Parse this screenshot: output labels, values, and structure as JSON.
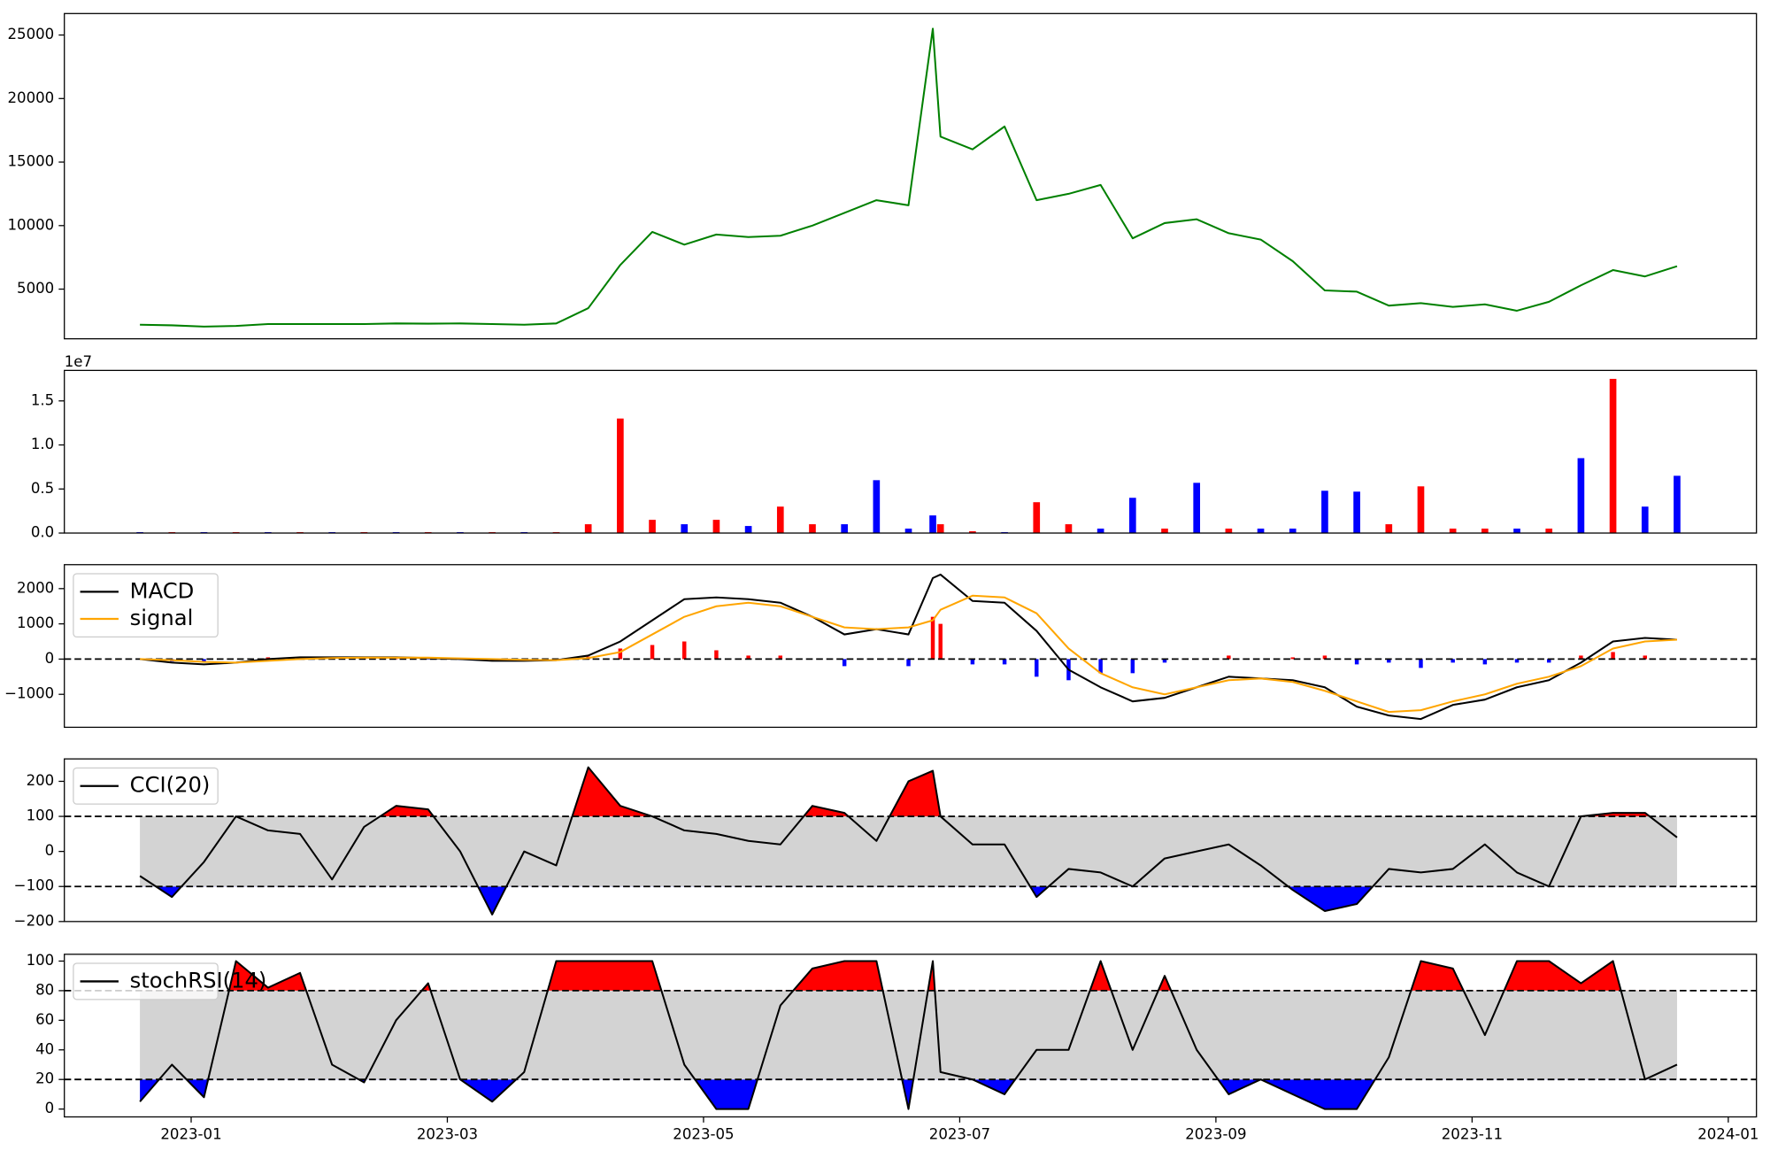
{
  "chart_data": [
    {
      "type": "line",
      "color": "#008000",
      "x": [
        -0.4,
        -0.15,
        0.1,
        0.35,
        0.6,
        0.85,
        1.1,
        1.35,
        1.6,
        1.85,
        2.1,
        2.35,
        2.6,
        2.85,
        3.1,
        3.35,
        3.6,
        3.85,
        4.1,
        4.35,
        4.6,
        4.85,
        5.1,
        5.35,
        5.6,
        5.79,
        5.85,
        6.1,
        6.35,
        6.6,
        6.85,
        7.1,
        7.35,
        7.6,
        7.85,
        8.1,
        8.35,
        8.6,
        8.85,
        9.1,
        9.35,
        9.6,
        9.85,
        10.1,
        10.35,
        10.6,
        10.85,
        11.1,
        11.35,
        11.6
      ],
      "values": [
        2200,
        2150,
        2050,
        2100,
        2250,
        2250,
        2250,
        2250,
        2300,
        2280,
        2300,
        2250,
        2200,
        2300,
        3500,
        6900,
        9500,
        8500,
        9300,
        9100,
        9200,
        10000,
        11000,
        12000,
        11600,
        25500,
        17000,
        16000,
        17800,
        12000,
        12500,
        13200,
        9000,
        10200,
        10500,
        9400,
        8900,
        7200,
        4900,
        4800,
        3700,
        3900,
        3600,
        3800,
        3300,
        4000,
        5300,
        6500,
        6000,
        6800
      ],
      "xlim": [
        -0.99,
        12.22
      ],
      "ylim": [
        1090,
        26690
      ],
      "yticks": [
        5000,
        10000,
        15000,
        20000,
        25000
      ]
    },
    {
      "type": "bar",
      "offset_label": "1e7",
      "x": [
        -0.4,
        -0.15,
        0.1,
        0.35,
        0.6,
        0.85,
        1.1,
        1.35,
        1.6,
        1.85,
        2.1,
        2.35,
        2.6,
        2.85,
        3.1,
        3.35,
        3.6,
        3.85,
        4.1,
        4.35,
        4.6,
        4.85,
        5.1,
        5.35,
        5.6,
        5.79,
        5.85,
        6.1,
        6.35,
        6.6,
        6.85,
        7.1,
        7.35,
        7.6,
        7.85,
        8.1,
        8.35,
        8.6,
        8.85,
        9.1,
        9.35,
        9.6,
        9.85,
        10.1,
        10.35,
        10.6,
        10.85,
        11.1,
        11.35,
        11.6
      ],
      "values": [
        0.01,
        0.01,
        0.01,
        0.01,
        0.01,
        0.01,
        0.01,
        0.01,
        0.01,
        0.01,
        0.01,
        0.01,
        0.01,
        0.01,
        0.1,
        1.3,
        0.15,
        0.1,
        0.15,
        0.08,
        0.3,
        0.1,
        0.1,
        0.6,
        0.05,
        0.2,
        0.1,
        0.02,
        0.01,
        0.35,
        0.1,
        0.05,
        0.4,
        0.05,
        0.57,
        0.05,
        0.05,
        0.05,
        0.48,
        0.47,
        0.1,
        0.53,
        0.05,
        0.05,
        0.05,
        0.05,
        0.85,
        1.75,
        0.3,
        0.65
      ],
      "bar_colors": [
        "#0000ff",
        "#ff0000",
        "#0000ff",
        "#ff0000",
        "#0000ff",
        "#ff0000",
        "#0000ff",
        "#ff0000",
        "#0000ff",
        "#ff0000",
        "#0000ff",
        "#ff0000",
        "#0000ff",
        "#ff0000",
        "#ff0000",
        "#ff0000",
        "#ff0000",
        "#0000ff",
        "#ff0000",
        "#0000ff",
        "#ff0000",
        "#ff0000",
        "#0000ff",
        "#0000ff",
        "#0000ff",
        "#0000ff",
        "#ff0000",
        "#ff0000",
        "#0000ff",
        "#ff0000",
        "#ff0000",
        "#0000ff",
        "#0000ff",
        "#ff0000",
        "#0000ff",
        "#ff0000",
        "#0000ff",
        "#0000ff",
        "#0000ff",
        "#0000ff",
        "#ff0000",
        "#ff0000",
        "#ff0000",
        "#ff0000",
        "#0000ff",
        "#ff0000",
        "#0000ff",
        "#ff0000",
        "#0000ff",
        "#0000ff"
      ],
      "xlim": [
        -0.99,
        12.22
      ],
      "ylim": [
        0,
        1.846
      ],
      "yticks": [
        {
          "value": 0,
          "label": "0.0"
        },
        {
          "value": 0.5,
          "label": "0.5"
        },
        {
          "value": 1,
          "label": "1.0"
        },
        {
          "value": 1.5,
          "label": "1.5"
        }
      ]
    },
    {
      "type": "macd",
      "legend": "upper left",
      "zero_line": true,
      "x": [
        -0.4,
        -0.15,
        0.1,
        0.35,
        0.6,
        0.85,
        1.1,
        1.35,
        1.6,
        1.85,
        2.1,
        2.35,
        2.6,
        2.85,
        3.1,
        3.35,
        3.6,
        3.85,
        4.1,
        4.35,
        4.6,
        4.85,
        5.1,
        5.35,
        5.6,
        5.79,
        5.85,
        6.1,
        6.35,
        6.6,
        6.85,
        7.1,
        7.35,
        7.6,
        7.85,
        8.1,
        8.35,
        8.6,
        8.85,
        9.1,
        9.35,
        9.6,
        9.85,
        10.1,
        10.35,
        10.6,
        10.85,
        11.1,
        11.35,
        11.6
      ],
      "series": [
        {
          "name": "MACD",
          "color": "#000000",
          "values": [
            0,
            -100,
            -150,
            -100,
            0,
            50,
            50,
            50,
            50,
            30,
            0,
            -50,
            -50,
            -30,
            100,
            500,
            1100,
            1700,
            1750,
            1700,
            1600,
            1200,
            700,
            850,
            700,
            2300,
            2400,
            1650,
            1600,
            800,
            -300,
            -800,
            -1200,
            -1100,
            -800,
            -500,
            -550,
            -600,
            -800,
            -1350,
            -1600,
            -1700,
            -1300,
            -1150,
            -800,
            -600,
            -100,
            500,
            600,
            550
          ]
        },
        {
          "name": "signal",
          "color": "#ffa500",
          "values": [
            0,
            -30,
            -80,
            -100,
            -50,
            0,
            30,
            40,
            40,
            40,
            20,
            0,
            -20,
            -30,
            30,
            200,
            700,
            1200,
            1500,
            1600,
            1500,
            1200,
            900,
            850,
            900,
            1100,
            1400,
            1800,
            1750,
            1300,
            300,
            -400,
            -800,
            -1000,
            -800,
            -600,
            -550,
            -650,
            -900,
            -1200,
            -1500,
            -1450,
            -1200,
            -1000,
            -700,
            -500,
            -200,
            300,
            500,
            550
          ]
        }
      ],
      "hist": [
        0,
        -70,
        -70,
        0,
        50,
        50,
        20,
        10,
        10,
        -10,
        -20,
        -50,
        -30,
        0,
        70,
        300,
        400,
        500,
        250,
        100,
        100,
        0,
        -200,
        0,
        -200,
        1200,
        1000,
        -150,
        -150,
        -500,
        -600,
        -400,
        -400,
        -100,
        0,
        100,
        0,
        50,
        100,
        -150,
        -100,
        -250,
        -100,
        -150,
        -100,
        -100,
        100,
        200,
        100,
        0
      ],
      "hist_colors": [
        "#ff0000",
        "#0000ff"
      ],
      "xlim": [
        -0.99,
        12.22
      ],
      "ylim": [
        -1935,
        2680
      ],
      "yticks": [
        {
          "value": -1000,
          "label": "−1000"
        },
        0,
        1000,
        2000
      ]
    },
    {
      "type": "oscillator",
      "legend": "upper left",
      "x": [
        -0.4,
        -0.15,
        0.1,
        0.35,
        0.6,
        0.85,
        1.1,
        1.35,
        1.6,
        1.85,
        2.1,
        2.35,
        2.6,
        2.85,
        3.1,
        3.35,
        3.6,
        3.85,
        4.1,
        4.35,
        4.6,
        4.85,
        5.1,
        5.35,
        5.6,
        5.79,
        5.85,
        6.1,
        6.35,
        6.6,
        6.85,
        7.1,
        7.35,
        7.6,
        7.85,
        8.1,
        8.35,
        8.6,
        8.85,
        9.1,
        9.35,
        9.6,
        9.85,
        10.1,
        10.35,
        10.6,
        10.85,
        11.1,
        11.35,
        11.6
      ],
      "series": [
        {
          "name": "CCI(20)",
          "color": "#000000",
          "values": [
            -70,
            -130,
            -30,
            100,
            60,
            50,
            -80,
            70,
            130,
            120,
            0,
            -180,
            0,
            -40,
            240,
            130,
            100,
            60,
            50,
            30,
            20,
            130,
            110,
            30,
            200,
            230,
            100,
            20,
            20,
            -130,
            -50,
            -60,
            -100,
            -20,
            0,
            20,
            -40,
            -110,
            -170,
            -150,
            -50,
            -60,
            -50,
            20,
            -60,
            -100,
            100,
            110,
            110,
            40
          ]
        }
      ],
      "levels": [
        -100,
        100
      ],
      "fill_colors": [
        "#ff0000",
        "#0000ff",
        "#d3d3d3"
      ],
      "xlim": [
        -0.99,
        12.22
      ],
      "ylim": [
        -200,
        264
      ],
      "yticks": [
        {
          "value": -200,
          "label": "−200"
        },
        {
          "value": -100,
          "label": "−100"
        },
        0,
        100,
        200
      ]
    },
    {
      "type": "oscillator",
      "legend": "upper left",
      "x": [
        -0.4,
        -0.15,
        0.1,
        0.35,
        0.6,
        0.85,
        1.1,
        1.35,
        1.6,
        1.85,
        2.1,
        2.35,
        2.6,
        2.85,
        3.1,
        3.35,
        3.6,
        3.85,
        4.1,
        4.35,
        4.6,
        4.85,
        5.1,
        5.35,
        5.6,
        5.79,
        5.85,
        6.1,
        6.35,
        6.6,
        6.85,
        7.1,
        7.35,
        7.6,
        7.85,
        8.1,
        8.35,
        8.6,
        8.85,
        9.1,
        9.35,
        9.6,
        9.85,
        10.1,
        10.35,
        10.6,
        10.85,
        11.1,
        11.35,
        11.6
      ],
      "series": [
        {
          "name": "stochRSI(14)",
          "color": "#000000",
          "values": [
            5,
            30,
            8,
            100,
            82,
            92,
            30,
            18,
            60,
            85,
            20,
            5,
            25,
            100,
            100,
            100,
            100,
            30,
            0,
            0,
            70,
            95,
            100,
            100,
            0,
            100,
            25,
            20,
            10,
            40,
            40,
            100,
            40,
            90,
            40,
            10,
            20,
            10,
            0,
            0,
            35,
            100,
            95,
            50,
            100,
            100,
            85,
            100,
            20,
            30
          ]
        }
      ],
      "levels": [
        20,
        80
      ],
      "fill_colors": [
        "#ff0000",
        "#0000ff",
        "#d3d3d3"
      ],
      "xlim": [
        -0.99,
        12.22
      ],
      "ylim": [
        -5.3,
        104.6
      ],
      "yticks": [
        0,
        20,
        40,
        60,
        80,
        100
      ],
      "xticks": [
        {
          "value": 0,
          "label": "2023-01"
        },
        {
          "value": 2,
          "label": "2023-03"
        },
        {
          "value": 4,
          "label": "2023-05"
        },
        {
          "value": 6,
          "label": "2023-07"
        },
        {
          "value": 8,
          "label": "2023-09"
        },
        {
          "value": 10,
          "label": "2023-11"
        },
        {
          "value": 12,
          "label": "2024-01"
        }
      ]
    }
  ]
}
